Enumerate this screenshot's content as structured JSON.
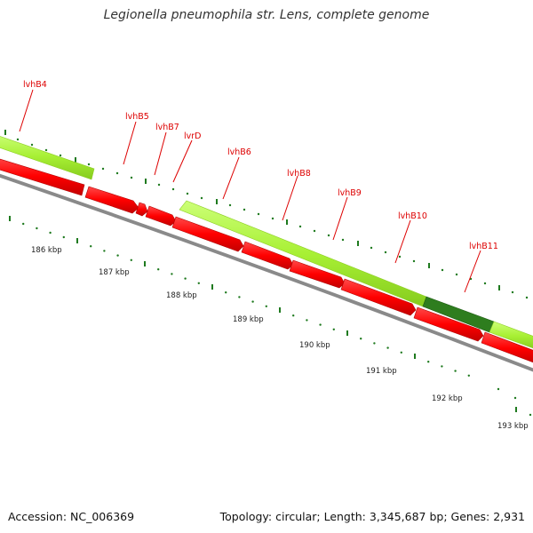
{
  "title": "Legionella pneumophila str. Lens, complete genome",
  "footer": {
    "accession": "Accession: NC_006369",
    "topology": "Topology: circular; Length: 3,345,687 bp; Genes: 2,931"
  },
  "genes": [
    {
      "name": "lvhB4"
    },
    {
      "name": "lvhB5"
    },
    {
      "name": "lvhB7"
    },
    {
      "name": "lvrD"
    },
    {
      "name": "lvhB6"
    },
    {
      "name": "lvhB8"
    },
    {
      "name": "lvhB9"
    },
    {
      "name": "lvhB10"
    },
    {
      "name": "lvhB11"
    }
  ],
  "scale": {
    "ticks": [
      "186 kbp",
      "187 kbp",
      "188 kbp",
      "189 kbp",
      "190 kbp",
      "191 kbp",
      "192 kbp",
      "193 kbp"
    ]
  },
  "colors": {
    "forward_feature": "#a8f034",
    "forward_feature_dark": "#2e7d1e",
    "reverse_feature": "#ff0000",
    "backbone": "#8a8a8a",
    "gene_label": "#dd0000",
    "tick": "#1f7a1f"
  }
}
